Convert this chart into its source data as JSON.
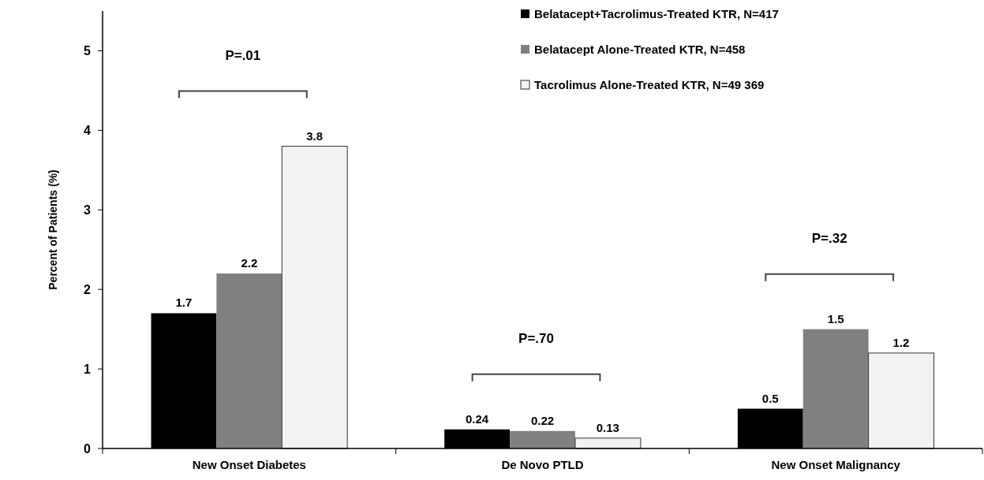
{
  "chart_data": {
    "type": "bar",
    "ylabel": "Percent of Patients (%)",
    "categories": [
      "New Onset Diabetes",
      "De Novo PTLD",
      "New Onset Malignancy"
    ],
    "series": [
      {
        "name": "Belatacept+Tacrolimus-Treated KTR, N=417",
        "color": "#000000",
        "values": [
          1.7,
          0.24,
          0.5
        ]
      },
      {
        "name": "Belatacept Alone-Treated KTR, N=458",
        "color": "#808080",
        "values": [
          2.2,
          0.22,
          1.5
        ]
      },
      {
        "name": "Tacrolimus Alone-Treated KTR, N=49 369",
        "color": "#f2f2f2",
        "values": [
          3.8,
          0.13,
          1.2
        ]
      }
    ],
    "ylim": [
      0,
      5.5
    ],
    "yticks": [
      0,
      1,
      2,
      3,
      4,
      5
    ],
    "data_labels": true,
    "legend": "top right",
    "grid": false,
    "annotations": [
      "P=.01",
      "P=.70",
      "P=.32"
    ]
  }
}
